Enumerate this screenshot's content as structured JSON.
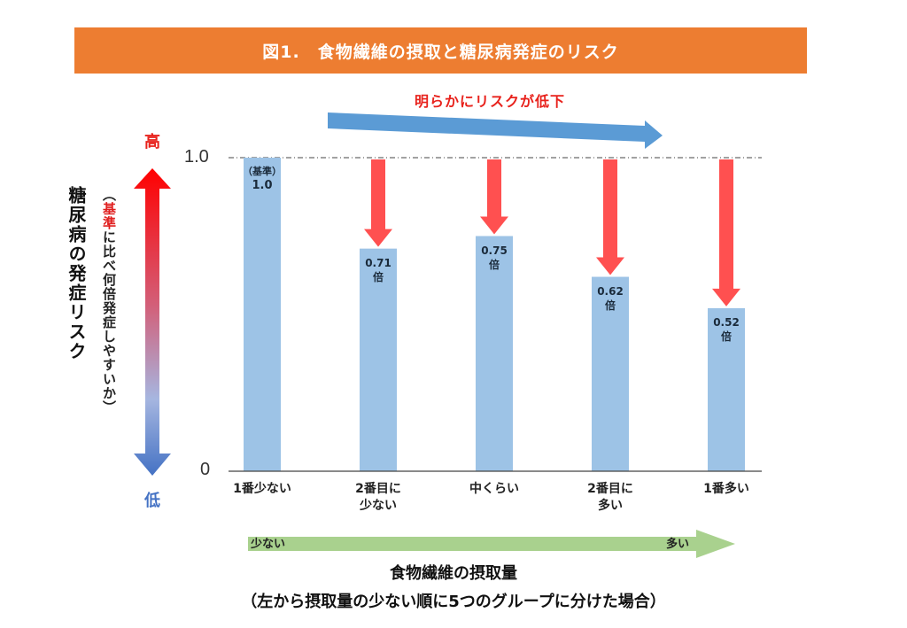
{
  "title": "図1.　食物繊維の摂取と糖尿病発症のリスク",
  "colors": {
    "title_bg": "#ED7D31",
    "bar": "#9DC3E6",
    "down_arrow": "#FF5050",
    "trend_arrow": "#5B9BD5",
    "intake_arrow": "#A9D18E",
    "risk_high": "#FF0000",
    "risk_low": "#4472C4"
  },
  "trend_label": "明らかにリスクが低下",
  "y_axis": {
    "title": "糖尿病の発症リスク",
    "subtitle_prefix": "（",
    "subtitle_highlight": "基準",
    "subtitle_rest": "に比べ何倍発症しやすいか）",
    "high_label": "高",
    "low_label": "低"
  },
  "x_axis": {
    "arrow_low": "少ない",
    "arrow_high": "多い",
    "title": "食物繊維の摂取量",
    "note": "（左から摂取量の少ない順に5つのグループに分けた場合）"
  },
  "chart_data": {
    "type": "bar",
    "title": "図1.　食物繊維の摂取と糖尿病発症のリスク",
    "xlabel": "食物繊維の摂取量",
    "ylabel": "糖尿病の発症リスク",
    "ylim": [
      0,
      1.0
    ],
    "yticks": [
      "0",
      "1.0"
    ],
    "reference_line": 1.0,
    "grid": false,
    "categories": [
      [
        "1番少ない"
      ],
      [
        "2番目に",
        "少ない"
      ],
      [
        "中くらい"
      ],
      [
        "2番目に",
        "多い"
      ],
      [
        "1番多い"
      ]
    ],
    "values": [
      1.0,
      0.71,
      0.75,
      0.62,
      0.52
    ],
    "data_labels": [
      [
        "（基準）",
        "1.0"
      ],
      [
        "0.71",
        "倍"
      ],
      [
        "0.75",
        "倍"
      ],
      [
        "0.62",
        "倍"
      ],
      [
        "0.52",
        "倍"
      ]
    ],
    "annotations": [
      "明らかにリスクが低下"
    ]
  }
}
